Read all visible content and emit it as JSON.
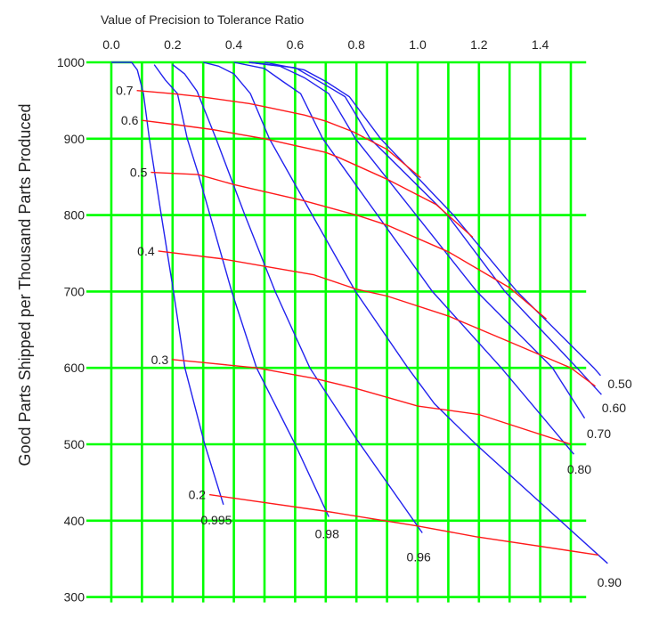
{
  "chart_data": {
    "type": "line",
    "xlabel": "Value of Precision to Tolerance Ratio",
    "ylabel": "Good Parts Shipped per Thousand Parts Produced",
    "xlim": [
      0.0,
      1.55
    ],
    "ylim": [
      300,
      1000
    ],
    "x_ticks": [
      "0.0",
      "0.2",
      "0.4",
      "0.6",
      "0.8",
      "1.0",
      "1.2",
      "1.4"
    ],
    "y_ticks": [
      "300",
      "400",
      "500",
      "600",
      "700",
      "800",
      "900",
      "1000"
    ],
    "x_axis_position": "top",
    "grid": true,
    "grid_step": {
      "x": 0.1,
      "y": 100
    },
    "colors": {
      "grid": "#00ff00",
      "blue_series": "#2222ee",
      "red_series": "#ff1a1a"
    },
    "blue_series": [
      {
        "name": "0.995",
        "points": [
          [
            0,
            1000
          ],
          [
            0.066,
            1000
          ],
          [
            0.085,
            990
          ],
          [
            0.105,
            959
          ],
          [
            0.124,
            900
          ],
          [
            0.163,
            800
          ],
          [
            0.203,
            700
          ],
          [
            0.24,
            600
          ],
          [
            0.305,
            500
          ],
          [
            0.366,
            421
          ]
        ]
      },
      {
        "name": "0.98",
        "points": [
          [
            0.14,
            997
          ],
          [
            0.176,
            977
          ],
          [
            0.216,
            959
          ],
          [
            0.248,
            900
          ],
          [
            0.283,
            855
          ],
          [
            0.322,
            800
          ],
          [
            0.393,
            700
          ],
          [
            0.474,
            600
          ],
          [
            0.6,
            500
          ],
          [
            0.71,
            405
          ]
        ]
      },
      {
        "name": "0.96",
        "points": [
          [
            0.2,
            997
          ],
          [
            0.239,
            985
          ],
          [
            0.28,
            962
          ],
          [
            0.342,
            900
          ],
          [
            0.436,
            800
          ],
          [
            0.535,
            700
          ],
          [
            0.648,
            600
          ],
          [
            0.8,
            507
          ],
          [
            1.015,
            384
          ]
        ]
      },
      {
        "name": "0.90",
        "points": [
          [
            0.3,
            1000
          ],
          [
            0.35,
            995
          ],
          [
            0.4,
            985
          ],
          [
            0.454,
            959
          ],
          [
            0.516,
            900
          ],
          [
            0.656,
            800
          ],
          [
            0.797,
            700
          ],
          [
            0.968,
            600
          ],
          [
            1.055,
            553
          ],
          [
            1.19,
            500
          ],
          [
            1.62,
            344
          ]
        ]
      },
      {
        "name": "0.80",
        "points": [
          [
            0.4,
            1000
          ],
          [
            0.5,
            992
          ],
          [
            0.56,
            975
          ],
          [
            0.618,
            959
          ],
          [
            0.69,
            900
          ],
          [
            0.869,
            800
          ],
          [
            1.048,
            700
          ],
          [
            1.273,
            600
          ],
          [
            1.51,
            487
          ]
        ]
      },
      {
        "name": "0.70",
        "points": [
          [
            0.45,
            1000
          ],
          [
            0.55,
            995
          ],
          [
            0.63,
            980
          ],
          [
            0.71,
            959
          ],
          [
            0.797,
            900
          ],
          [
            0.995,
            800
          ],
          [
            1.193,
            700
          ],
          [
            1.44,
            600
          ],
          [
            1.545,
            534
          ]
        ]
      },
      {
        "name": "0.60",
        "points": [
          [
            0.45,
            1000
          ],
          [
            0.6,
            993
          ],
          [
            0.7,
            970
          ],
          [
            0.763,
            955
          ],
          [
            0.845,
            900
          ],
          [
            1.097,
            800
          ],
          [
            1.285,
            700
          ],
          [
            1.52,
            600
          ],
          [
            1.6,
            565
          ]
        ]
      },
      {
        "name": "0.50",
        "points": [
          [
            0.5,
            1000
          ],
          [
            0.63,
            990
          ],
          [
            0.7,
            975
          ],
          [
            0.777,
            955
          ],
          [
            0.879,
            900
          ],
          [
            1.117,
            800
          ],
          [
            1.324,
            700
          ],
          [
            1.575,
            600
          ],
          [
            1.597,
            590
          ]
        ]
      }
    ],
    "red_series": [
      {
        "name": "0.7",
        "points": [
          [
            0.083,
            963
          ],
          [
            0.2,
            959
          ],
          [
            0.29,
            955
          ],
          [
            0.45,
            946
          ],
          [
            0.5,
            942
          ],
          [
            0.63,
            931
          ],
          [
            0.7,
            923
          ],
          [
            0.79,
            909
          ],
          [
            0.9,
            886
          ],
          [
            1.01,
            849
          ]
        ]
      },
      {
        "name": "0.6",
        "points": [
          [
            0.1,
            924
          ],
          [
            0.2,
            919
          ],
          [
            0.33,
            912
          ],
          [
            0.5,
            900
          ],
          [
            0.7,
            882
          ],
          [
            0.745,
            875
          ],
          [
            0.8,
            865
          ],
          [
            0.9,
            847
          ],
          [
            1.06,
            814
          ],
          [
            1.18,
            771
          ]
        ]
      },
      {
        "name": "0.5",
        "points": [
          [
            0.129,
            856
          ],
          [
            0.284,
            853
          ],
          [
            0.4,
            840
          ],
          [
            0.627,
            819
          ],
          [
            0.8,
            800
          ],
          [
            0.9,
            787
          ],
          [
            1.1,
            752
          ],
          [
            1.3,
            705
          ],
          [
            1.42,
            664
          ]
        ]
      },
      {
        "name": "0.4",
        "points": [
          [
            0.153,
            753
          ],
          [
            0.357,
            743
          ],
          [
            0.5,
            733
          ],
          [
            0.66,
            722
          ],
          [
            0.8,
            703
          ],
          [
            0.9,
            694
          ],
          [
            1.1,
            668
          ],
          [
            1.3,
            634
          ],
          [
            1.5,
            600
          ],
          [
            1.58,
            576
          ]
        ]
      },
      {
        "name": "0.3",
        "points": [
          [
            0.198,
            611
          ],
          [
            0.3,
            607
          ],
          [
            0.474,
            600
          ],
          [
            0.665,
            586
          ],
          [
            0.8,
            573
          ],
          [
            1.0,
            550
          ],
          [
            1.2,
            539
          ],
          [
            1.5,
            500
          ]
        ]
      },
      {
        "name": "0.2",
        "points": [
          [
            0.32,
            434
          ],
          [
            0.705,
            412
          ],
          [
            1.0,
            393
          ],
          [
            1.19,
            379
          ],
          [
            1.59,
            355
          ]
        ]
      }
    ]
  }
}
